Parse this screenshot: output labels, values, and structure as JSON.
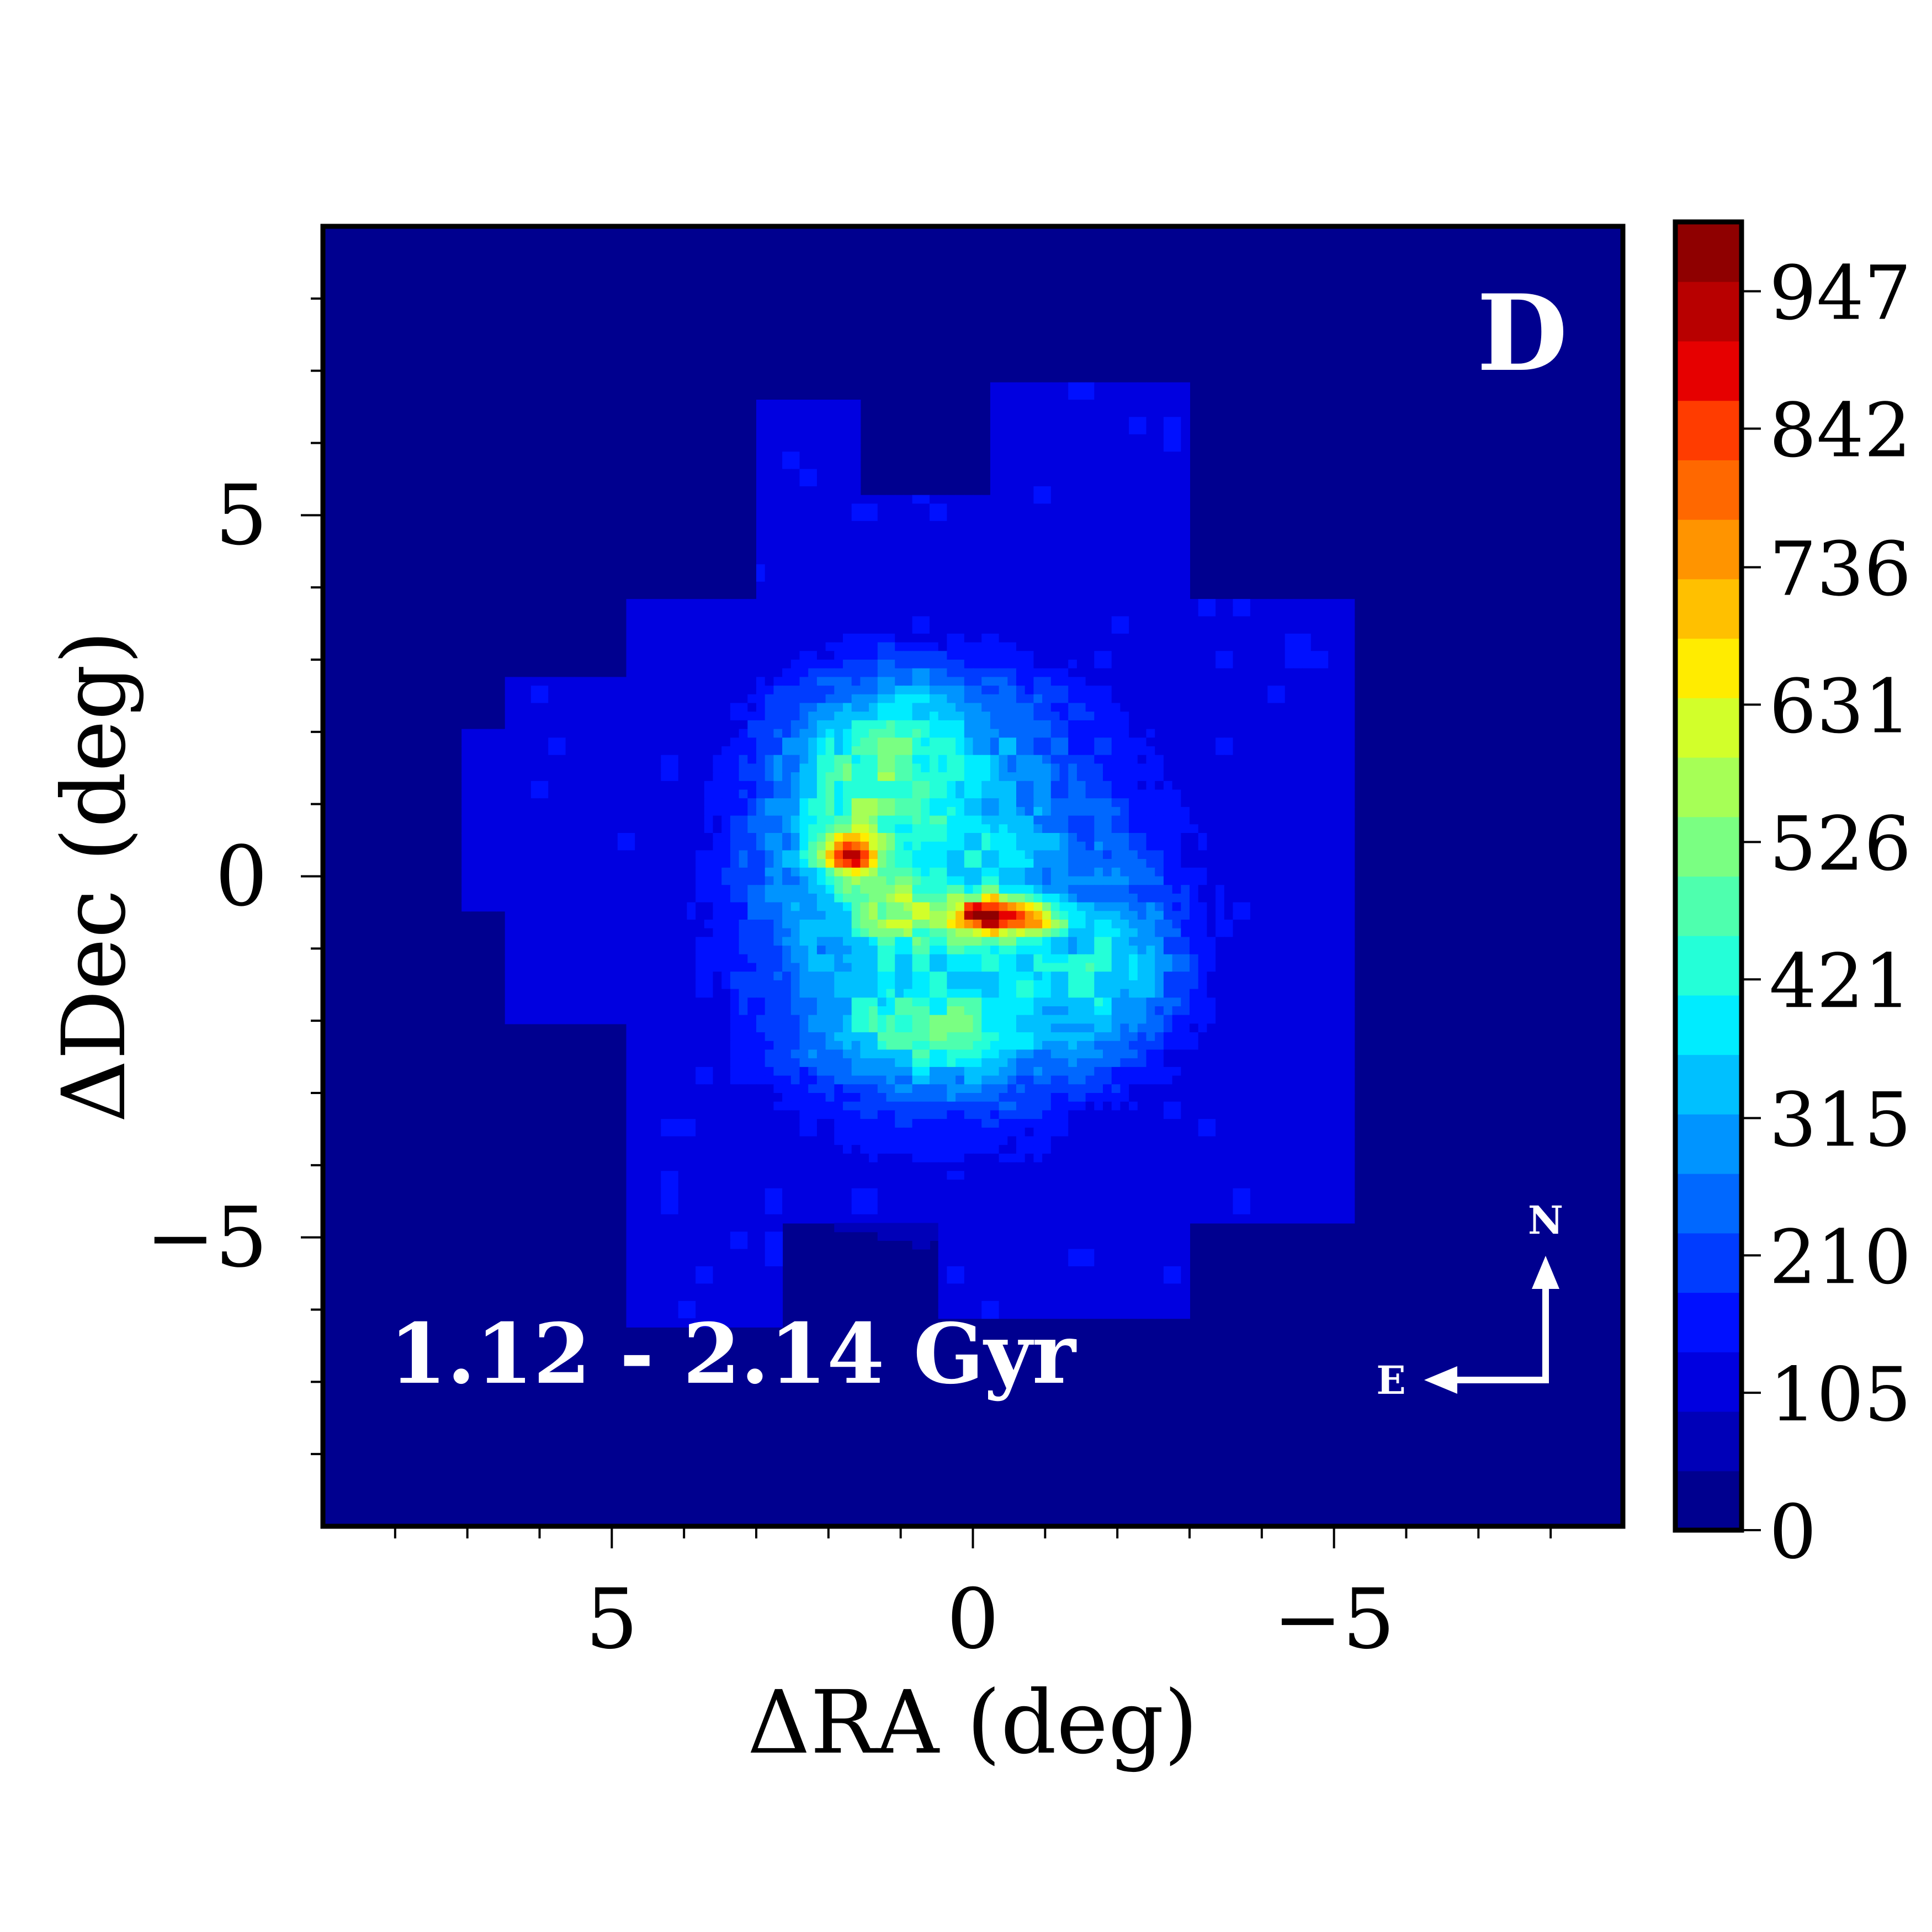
{
  "chart_data": {
    "type": "heatmap",
    "style": "filled-contour",
    "panel_label": "D",
    "annotation": "1.12 - 2.14 Gyr",
    "xlabel": "ΔRA (deg)",
    "ylabel": "ΔDec (deg)",
    "xlim": [
      9,
      -9
    ],
    "ylim": [
      -9,
      9
    ],
    "x_ticks": [
      -5,
      0,
      5
    ],
    "x_tick_labels": [
      "−5",
      "0",
      "5"
    ],
    "y_ticks": [
      -5,
      0,
      5
    ],
    "y_tick_labels": [
      "−5",
      "0",
      "5"
    ],
    "colorbar": {
      "min": 0,
      "max": 1000,
      "ticks": [
        0,
        105,
        210,
        315,
        421,
        526,
        631,
        736,
        842,
        947
      ],
      "tick_labels": [
        "0",
        "105",
        "210",
        "315",
        "421",
        "526",
        "631",
        "736",
        "842",
        "947"
      ],
      "colors": [
        "#00008f",
        "#0000b8",
        "#0000e0",
        "#0010ff",
        "#003cff",
        "#0068ff",
        "#0094ff",
        "#00c0ff",
        "#00ecff",
        "#24ffd8",
        "#4effae",
        "#7aff82",
        "#a6ff56",
        "#d2ff2a",
        "#ffec00",
        "#ffc000",
        "#ff9400",
        "#ff6800",
        "#ff3c00",
        "#e60000",
        "#b80000",
        "#8f0000"
      ]
    },
    "density_features": [
      {
        "kind": "footprint",
        "x": [
          -5.5,
          4.8
        ],
        "y": [
          -6.2,
          6.8
        ],
        "value": 110
      },
      {
        "kind": "ridge",
        "x": -0.5,
        "y": -0.5,
        "value": 970
      },
      {
        "kind": "peak",
        "x": 1.7,
        "y": 0.3,
        "value": 820
      },
      {
        "kind": "shoulder",
        "x": 1.0,
        "y": -0.4,
        "value": 650
      },
      {
        "kind": "arm",
        "x": -1.8,
        "y": -1.4,
        "value": 500
      },
      {
        "kind": "arm",
        "x": 0.8,
        "y": -2.2,
        "value": 480
      },
      {
        "kind": "arm",
        "x": 1.5,
        "y": 1.4,
        "value": 460
      }
    ],
    "compass": {
      "north_label": "N",
      "east_label": "E"
    }
  }
}
